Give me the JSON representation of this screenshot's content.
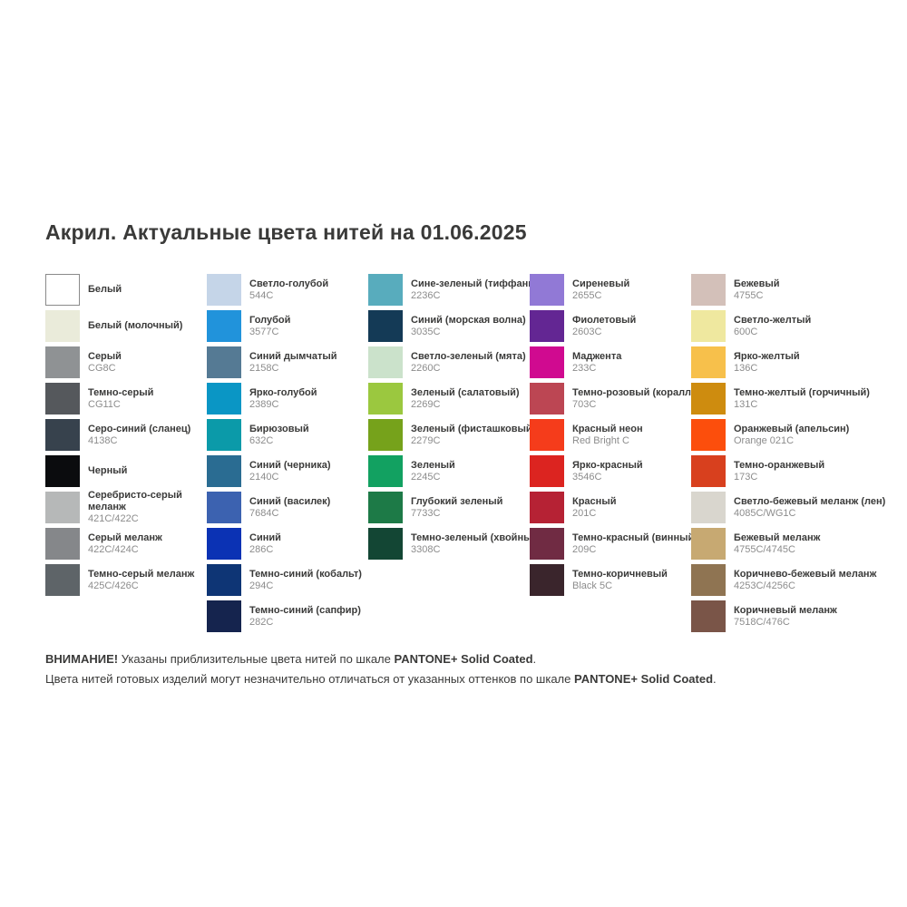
{
  "title": "Акрил. Актуальные цвета нитей на 01.06.2025",
  "palette": {
    "columns": [
      {
        "items": [
          {
            "name": "Белый",
            "code": "",
            "color": "#FFFFFF"
          },
          {
            "name": "Белый (молочный)",
            "code": "",
            "color": "#EAEBDA"
          },
          {
            "name": "Серый",
            "code": "CG8C",
            "color": "#8F9294"
          },
          {
            "name": "Темно-серый",
            "code": "CG11C",
            "color": "#55585C"
          },
          {
            "name": "Серо-синий (сланец)",
            "code": "4138C",
            "color": "#37424D"
          },
          {
            "name": "Черный",
            "code": "",
            "color": "#0B0C0E"
          },
          {
            "name": "Серебристо-серый меланж",
            "code": "421C/422C",
            "color": "#B6B8B8"
          },
          {
            "name": "Серый меланж",
            "code": "422C/424C",
            "color": "#85878A"
          },
          {
            "name": "Темно-серый меланж",
            "code": "425C/426C",
            "color": "#5E6468"
          }
        ]
      },
      {
        "items": [
          {
            "name": "Светло-голубой",
            "code": "544C",
            "color": "#C5D5E8"
          },
          {
            "name": "Голубой",
            "code": "3577C",
            "color": "#2193DB"
          },
          {
            "name": "Синий дымчатый",
            "code": "2158C",
            "color": "#557A94"
          },
          {
            "name": "Ярко-голубой",
            "code": "2389C",
            "color": "#0A96C5"
          },
          {
            "name": "Бирюзовый",
            "code": "632C",
            "color": "#0B9AA9"
          },
          {
            "name": "Синий (черника)",
            "code": "2140C",
            "color": "#2A6C92"
          },
          {
            "name": "Синий (василек)",
            "code": "7684C",
            "color": "#3C62B0"
          },
          {
            "name": "Синий",
            "code": "286C",
            "color": "#0B32B4"
          },
          {
            "name": "Темно-синий (кобальт)",
            "code": "294C",
            "color": "#0E3575"
          },
          {
            "name": "Темно-синий (сапфир)",
            "code": "282C",
            "color": "#15244E"
          }
        ]
      },
      {
        "items": [
          {
            "name": "Сине-зеленый (тиффани)",
            "code": "2236C",
            "color": "#58ACBD"
          },
          {
            "name": "Синий (морская волна)",
            "code": "3035C",
            "color": "#143A56"
          },
          {
            "name": "Светло-зеленый (мята)",
            "code": "2260C",
            "color": "#CBE2CB"
          },
          {
            "name": "Зеленый (салатовый)",
            "code": "2269C",
            "color": "#9BC83F"
          },
          {
            "name": "Зеленый (фисташковый)",
            "code": "2279C",
            "color": "#76A21B"
          },
          {
            "name": "Зеленый",
            "code": "2245C",
            "color": "#12A161"
          },
          {
            "name": "Глубокий зеленый",
            "code": "7733C",
            "color": "#1D7A47"
          },
          {
            "name": "Темно-зеленый (хвойный)",
            "code": "3308C",
            "color": "#134634"
          }
        ]
      },
      {
        "items": [
          {
            "name": "Сиреневый",
            "code": "2655C",
            "color": "#9179D6"
          },
          {
            "name": "Фиолетовый",
            "code": "2603C",
            "color": "#632693"
          },
          {
            "name": "Маджента",
            "code": "233C",
            "color": "#D00A90"
          },
          {
            "name": "Темно-розовый (коралл)",
            "code": "703C",
            "color": "#BC4653"
          },
          {
            "name": "Красный неон",
            "code": "Red Bright C",
            "color": "#F53C1B"
          },
          {
            "name": "Ярко-красный",
            "code": "3546C",
            "color": "#DC2420"
          },
          {
            "name": "Красный",
            "code": "201C",
            "color": "#B62234"
          },
          {
            "name": "Темно-красный (винный)",
            "code": "209C",
            "color": "#702B43"
          },
          {
            "name": "Темно-коричневый",
            "code": "Black 5C",
            "color": "#3A252C"
          }
        ]
      },
      {
        "items": [
          {
            "name": "Бежевый",
            "code": "4755C",
            "color": "#D3C0B9"
          },
          {
            "name": "Светло-желтый",
            "code": "600C",
            "color": "#EFE89F"
          },
          {
            "name": "Ярко-желтый",
            "code": "136C",
            "color": "#F7C04B"
          },
          {
            "name": "Темно-желтый (горчичный)",
            "code": "131C",
            "color": "#CE8C0F"
          },
          {
            "name": "Оранжевый (апельсин)",
            "code": "Orange 021C",
            "color": "#FC4E0C"
          },
          {
            "name": "Темно-оранжевый",
            "code": "173C",
            "color": "#D8401E"
          },
          {
            "name": "Светло-бежевый меланж (лен)",
            "code": "4085C/WG1C",
            "color": "#D9D6CE"
          },
          {
            "name": "Бежевый меланж",
            "code": "4755C/4745C",
            "color": "#C7A972"
          },
          {
            "name": "Коричнево-бежевый меланж",
            "code": "4253C/4256C",
            "color": "#8F7452"
          },
          {
            "name": "Коричневый меланж",
            "code": "7518C/476C",
            "color": "#7A5548"
          }
        ]
      }
    ]
  },
  "footer": {
    "lines": [
      [
        {
          "text": "ВНИМАНИЕ!",
          "bold": true
        },
        {
          "text": " Указаны приблизительные цвета нитей по шкале ",
          "bold": false
        },
        {
          "text": "PANTONE+ Solid Coated",
          "bold": true
        },
        {
          "text": ".",
          "bold": false
        }
      ],
      [
        {
          "text": "Цвета нитей готовых изделий могут незначительно отличаться от указанных оттенков по шкале ",
          "bold": false
        },
        {
          "text": "PANTONE+ Solid Coated",
          "bold": true
        },
        {
          "text": ".",
          "bold": false
        }
      ]
    ]
  }
}
